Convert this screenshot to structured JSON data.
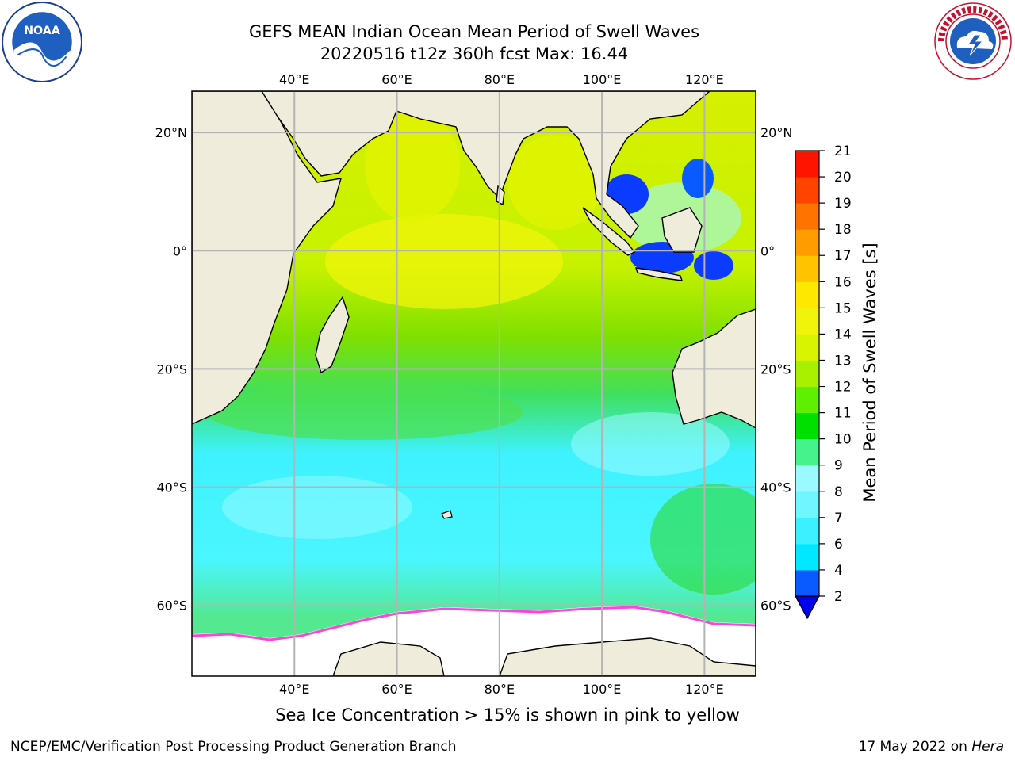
{
  "header": {
    "title_line1": "GEFS MEAN Indian Ocean Mean Period of Swell Waves",
    "title_line2": "20220516 t12z 360h fcst   Max: 16.44"
  },
  "logos": {
    "left": "noaa-logo",
    "left_text": "NOAA",
    "right": "national-weather-service-logo"
  },
  "map": {
    "projection": "plate-carree",
    "lon_range": [
      20,
      130
    ],
    "lat_range": [
      -72,
      27
    ],
    "lon_ticks": [
      "40°E",
      "60°E",
      "80°E",
      "100°E",
      "120°E"
    ],
    "lat_ticks": [
      "20°N",
      "0°",
      "20°S",
      "40°S",
      "60°S"
    ],
    "gridlines": true,
    "land_color": "#efecdc",
    "ice_color": "#ffffff"
  },
  "colorbar": {
    "label": "Mean Period of Swell Waves [s]",
    "ticks": [
      "2",
      "4",
      "6",
      "7",
      "8",
      "9",
      "10",
      "11",
      "12",
      "13",
      "14",
      "15",
      "16",
      "17",
      "18",
      "19",
      "20",
      "21"
    ],
    "colors": [
      "#0a5bff",
      "#00e8ff",
      "#3df0ff",
      "#6ff6ff",
      "#9bfaff",
      "#46f28c",
      "#00e000",
      "#5ef000",
      "#a8f000",
      "#d8f400",
      "#f0f40a",
      "#ffe800",
      "#ffc300",
      "#ff9d00",
      "#ff7400",
      "#ff4400",
      "#ff1400"
    ],
    "under_color": "#0000ee"
  },
  "notes": {
    "sea_ice": "Sea Ice Concentration > 15% is shown in pink to yellow"
  },
  "footer": {
    "left": "NCEP/EMC/Verification Post Processing Product Generation Branch",
    "date": "17 May 2022 on",
    "host": "Hera"
  }
}
